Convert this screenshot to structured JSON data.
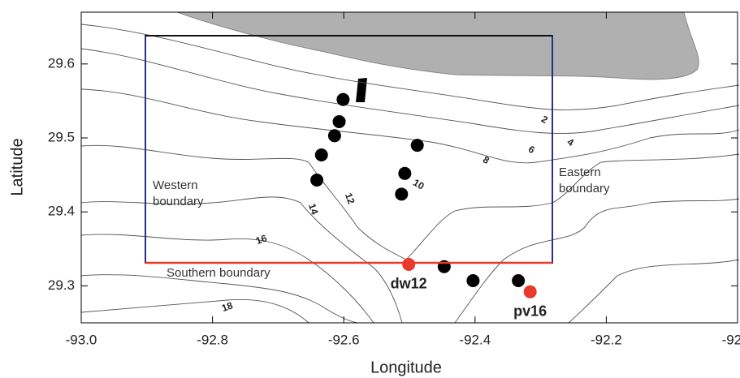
{
  "chart_data": {
    "type": "scatter",
    "xlabel": "Longitude",
    "ylabel": "Latitude",
    "xlim": [
      -93.0,
      -92.0
    ],
    "ylim": [
      29.25,
      29.67
    ],
    "xticks": [
      {
        "value": -93.0,
        "label": "-93.0"
      },
      -92.8,
      -92.6,
      -92.4,
      -92.2,
      {
        "value": -92.0,
        "label": "-92.0"
      }
    ],
    "yticks": [
      29.3,
      29.4,
      29.5,
      29.6
    ],
    "series": [
      {
        "color": "#000000",
        "x": [
          -92.601,
          -92.607,
          -92.614,
          -92.634,
          -92.641,
          -92.488,
          -92.507,
          -92.512,
          -92.447,
          -92.403,
          -92.334
        ],
        "y": [
          29.552,
          29.522,
          29.503,
          29.477,
          29.443,
          29.49,
          29.452,
          29.424,
          29.326,
          29.307,
          29.307
        ]
      },
      {
        "color": "#e8392a",
        "x": [
          -92.501,
          -92.316
        ],
        "y": [
          29.329,
          29.292
        ],
        "labels": [
          "dw12",
          "pv16"
        ]
      }
    ],
    "annotations": [
      "Western",
      "boundary",
      "Eastern",
      "boundary",
      "Southern boundary",
      "2",
      "4",
      "6",
      "8",
      "10",
      "12",
      "14",
      "16",
      "18"
    ]
  }
}
